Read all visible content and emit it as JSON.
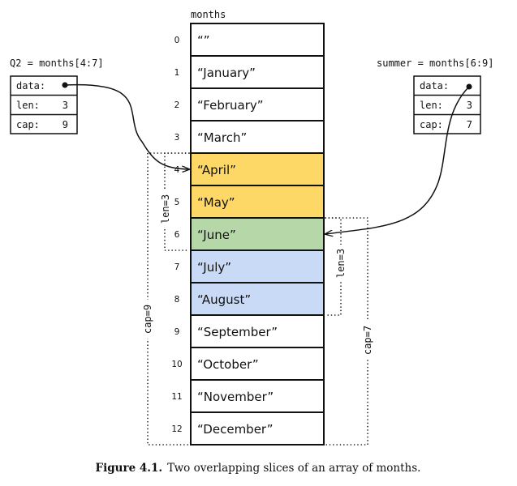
{
  "array": {
    "name": "months",
    "cells": [
      {
        "index": "0",
        "value": "“”",
        "color": "#ffffff"
      },
      {
        "index": "1",
        "value": "“January”",
        "color": "#ffffff"
      },
      {
        "index": "2",
        "value": "“February”",
        "color": "#ffffff"
      },
      {
        "index": "3",
        "value": "“March”",
        "color": "#ffffff"
      },
      {
        "index": "4",
        "value": "“April”",
        "color": "#fdd866"
      },
      {
        "index": "5",
        "value": "“May”",
        "color": "#fdd866"
      },
      {
        "index": "6",
        "value": "“June”",
        "color": "#b6d7a8"
      },
      {
        "index": "7",
        "value": "“July”",
        "color": "#c8daf6"
      },
      {
        "index": "8",
        "value": "“August”",
        "color": "#c8daf6"
      },
      {
        "index": "9",
        "value": "“September”",
        "color": "#ffffff"
      },
      {
        "index": "10",
        "value": "“October”",
        "color": "#ffffff"
      },
      {
        "index": "11",
        "value": "“November”",
        "color": "#ffffff"
      },
      {
        "index": "12",
        "value": "“December”",
        "color": "#ffffff"
      }
    ]
  },
  "q2": {
    "label": "Q2 = months[4:7]",
    "data_label": "data:",
    "len_label": "len:",
    "len_value": "3",
    "cap_label": "cap:",
    "cap_value": "9",
    "len_bracket": "len=3",
    "cap_bracket": "cap=9"
  },
  "summer": {
    "label": "summer = months[6:9]",
    "data_label": "data:",
    "len_label": "len:",
    "len_value": "3",
    "cap_label": "cap:",
    "cap_value": "7",
    "len_bracket": "len=3",
    "cap_bracket": "cap=7"
  },
  "caption": {
    "figure": "Figure 4.1.",
    "text": "Two overlapping slices of an array of months."
  }
}
